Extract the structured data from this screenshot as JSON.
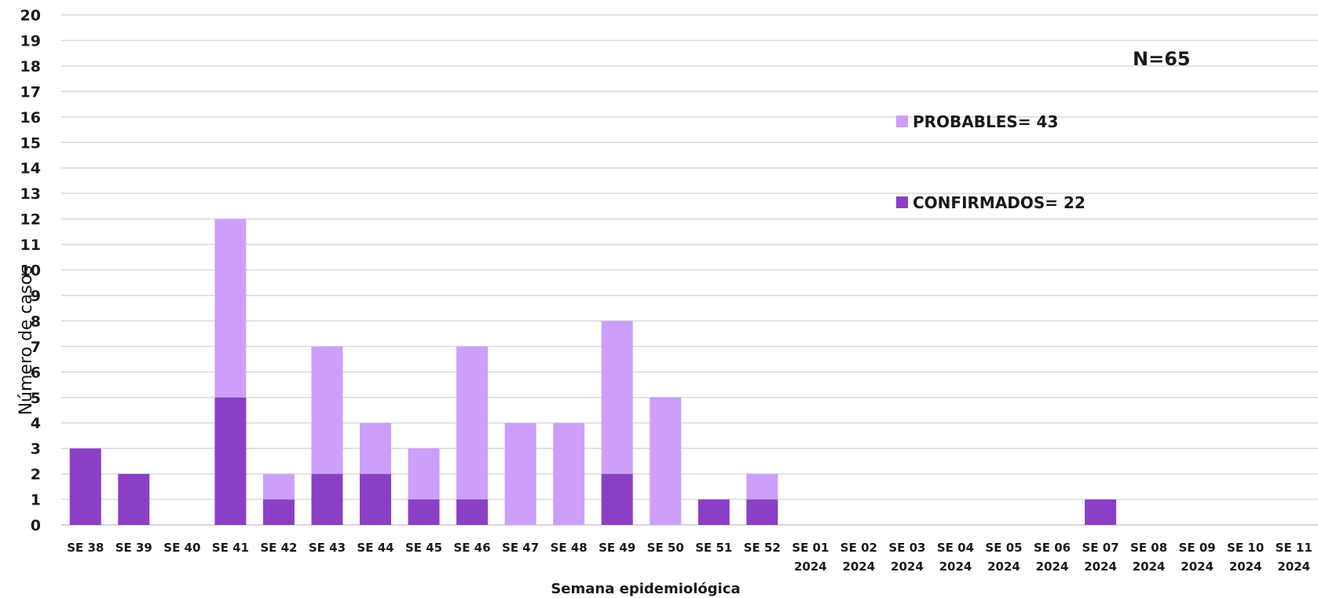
{
  "chart_data": {
    "type": "bar",
    "stacked": true,
    "xlabel": "Semana epidemiológica",
    "ylabel": "Número de casos",
    "ylim": [
      0,
      20
    ],
    "ytick_step": 1,
    "grid": true,
    "annotation": "N=65",
    "categories": [
      [
        "SE 38"
      ],
      [
        "SE 39"
      ],
      [
        "SE 40"
      ],
      [
        "SE 41"
      ],
      [
        "SE 42"
      ],
      [
        "SE 43"
      ],
      [
        "SE 44"
      ],
      [
        "SE 45"
      ],
      [
        "SE 46"
      ],
      [
        "SE 47"
      ],
      [
        "SE 48"
      ],
      [
        "SE 49"
      ],
      [
        "SE 50"
      ],
      [
        "SE 51"
      ],
      [
        "SE 52"
      ],
      [
        "SE 01",
        "2024"
      ],
      [
        "SE 02",
        "2024"
      ],
      [
        "SE 03",
        "2024"
      ],
      [
        "SE 04",
        "2024"
      ],
      [
        "SE 05",
        "2024"
      ],
      [
        "SE 06",
        "2024"
      ],
      [
        "SE 07",
        "2024"
      ],
      [
        "SE 08",
        "2024"
      ],
      [
        "SE 09",
        "2024"
      ],
      [
        "SE 10",
        "2024"
      ],
      [
        "SE 11",
        "2024"
      ]
    ],
    "series": [
      {
        "name": "CONFIRMADOS= 22",
        "color": "#8a3fc6",
        "values": [
          3,
          2,
          0,
          5,
          1,
          2,
          2,
          1,
          1,
          0,
          0,
          2,
          0,
          1,
          1,
          0,
          0,
          0,
          0,
          0,
          0,
          1,
          0,
          0,
          0,
          0
        ]
      },
      {
        "name": "PROBABLES= 43",
        "color": "#cc9ffb",
        "values": [
          0,
          0,
          0,
          7,
          1,
          5,
          2,
          2,
          6,
          4,
          4,
          6,
          5,
          0,
          1,
          0,
          0,
          0,
          0,
          0,
          0,
          0,
          0,
          0,
          0,
          0
        ]
      }
    ],
    "legend_order": [
      1,
      0
    ],
    "legend_position": "right"
  }
}
